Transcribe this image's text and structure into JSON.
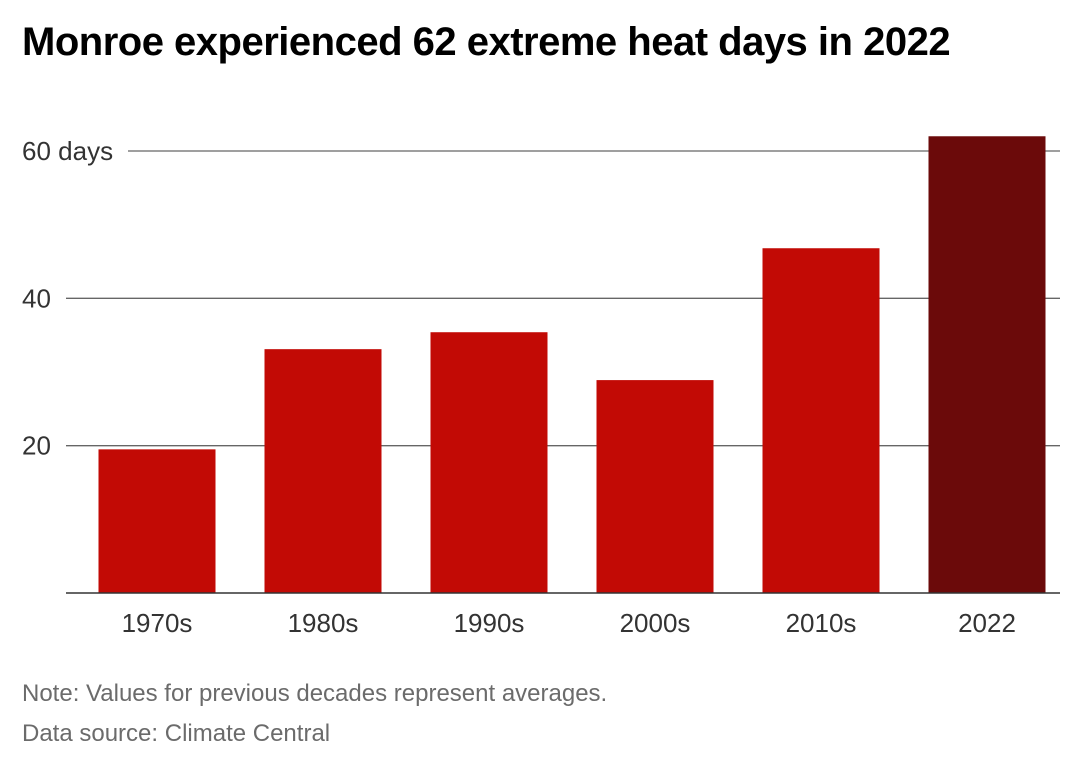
{
  "chart_data": {
    "type": "bar",
    "title": "Monroe experienced 62 extreme heat days in 2022",
    "categories": [
      "1970s",
      "1980s",
      "1990s",
      "2000s",
      "2010s",
      "2022"
    ],
    "values": [
      19.5,
      33.1,
      35.4,
      28.9,
      46.8,
      62
    ],
    "ylim": [
      0,
      60
    ],
    "yticks": [
      {
        "value": 20,
        "label": "20"
      },
      {
        "value": 40,
        "label": "40"
      },
      {
        "value": 60,
        "label": "60 days"
      }
    ],
    "grid": true,
    "colors": {
      "bar": "#c20a05",
      "highlight": "#6b0a0a",
      "gridline": "#666666",
      "axis": "#333333",
      "tick_text": "#333333"
    },
    "highlight_category": "2022",
    "note": "Note: Values for previous decades represent averages.",
    "source": "Data source: Climate Central"
  }
}
